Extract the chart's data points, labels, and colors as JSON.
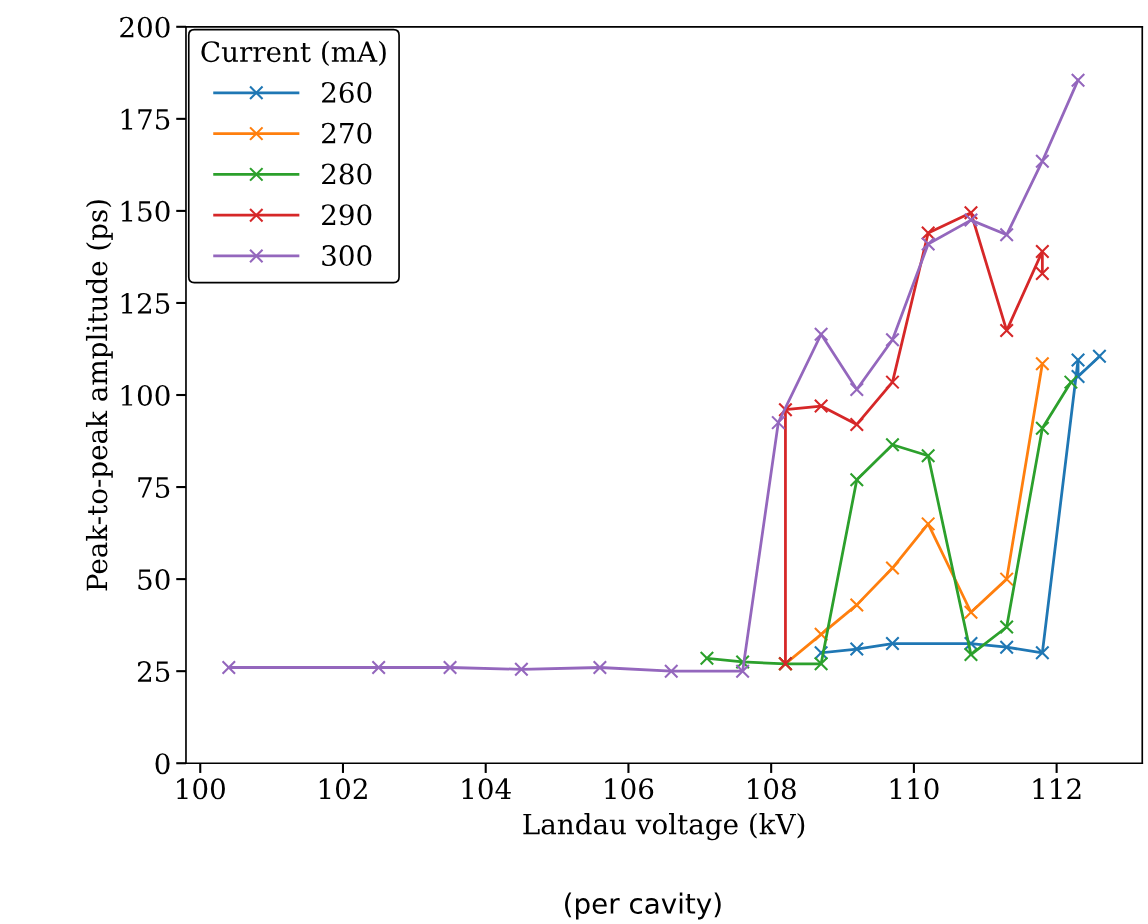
{
  "chart_data": {
    "type": "line",
    "xlabel": "Landau voltage (kV)",
    "ylabel": "Peak-to-peak amplitude (ps)",
    "legend_title": "Current (mA)",
    "legend": "top left",
    "marker": "cross",
    "line_style": "solid",
    "grid": false,
    "xlim": [
      99.8,
      113.2
    ],
    "xticks": [
      100,
      102,
      104,
      106,
      108,
      110,
      112
    ],
    "ylim": [
      0,
      200
    ],
    "yticks": [
      0,
      25,
      50,
      75,
      100,
      125,
      150,
      175,
      200
    ],
    "annotations": [
      "(per cavity)"
    ],
    "series": [
      {
        "name": "260",
        "color": "#1f77b4",
        "x": [
          108.7,
          109.2,
          109.7,
          110.8,
          111.3,
          111.8,
          112.3,
          112.3,
          112.6
        ],
        "values": [
          30,
          31,
          32.5,
          32.5,
          31.5,
          30,
          109.5,
          105,
          110.5
        ]
      },
      {
        "name": "270",
        "color": "#ff7f0e",
        "x": [
          108.2,
          108.7,
          109.2,
          109.7,
          110.2,
          110.8,
          111.3,
          111.8
        ],
        "values": [
          27,
          35,
          43,
          53,
          65,
          41,
          50,
          108.5
        ]
      },
      {
        "name": "280",
        "color": "#2ca02c",
        "x": [
          107.1,
          107.6,
          108.2,
          108.7,
          109.2,
          109.7,
          110.2,
          110.8,
          111.3,
          111.8,
          112.2
        ],
        "values": [
          28.5,
          27.5,
          27,
          27,
          77,
          86.5,
          83.5,
          29.5,
          37,
          91,
          103.5
        ]
      },
      {
        "name": "290",
        "color": "#d62728",
        "x": [
          108.2,
          108.2,
          108.7,
          109.2,
          109.7,
          110.2,
          110.8,
          111.3,
          111.8,
          111.8
        ],
        "values": [
          27,
          96,
          97,
          92,
          103.5,
          144,
          149.5,
          117.5,
          139,
          133
        ]
      },
      {
        "name": "300",
        "color": "#9467bd",
        "x": [
          100.4,
          102.5,
          103.5,
          104.5,
          105.6,
          106.6,
          107.6,
          108.1,
          108.7,
          109.2,
          109.7,
          110.2,
          110.8,
          111.3,
          111.8,
          112.3
        ],
        "values": [
          26,
          26,
          26,
          25.5,
          26,
          25,
          25,
          92.5,
          116.5,
          101.5,
          115,
          141,
          147.5,
          143.5,
          163.5,
          185.5
        ]
      }
    ]
  }
}
